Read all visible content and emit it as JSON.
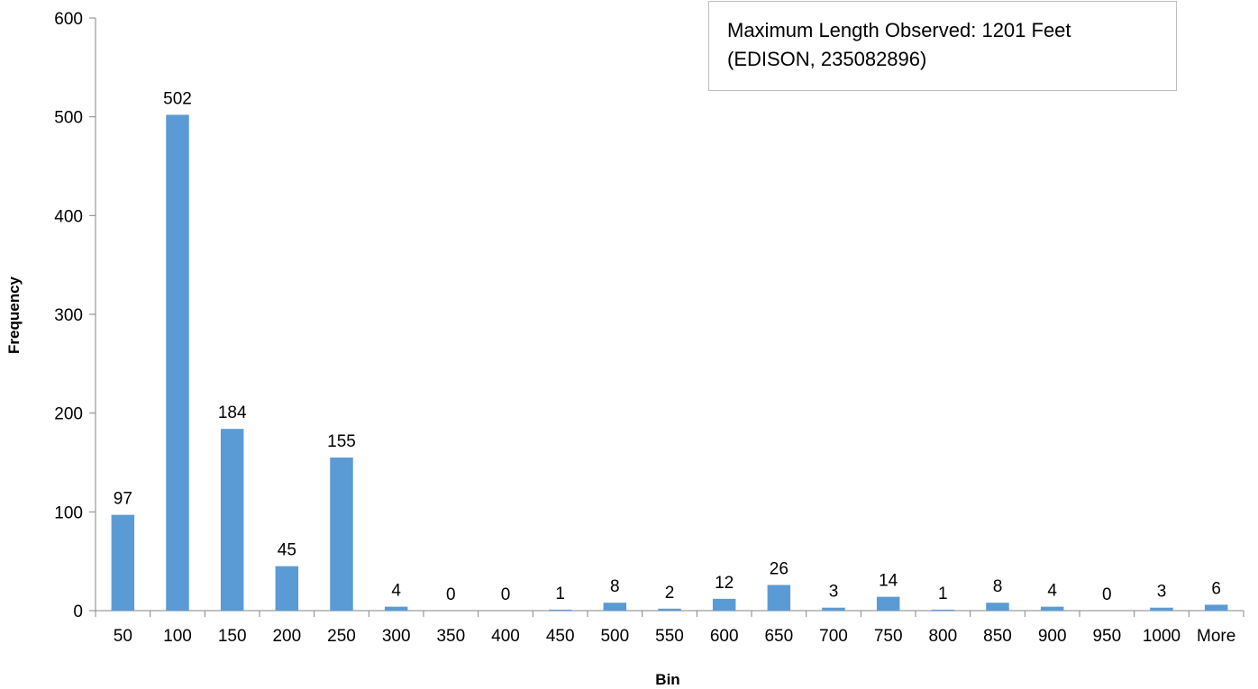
{
  "chart_data": {
    "type": "bar",
    "categories": [
      "50",
      "100",
      "150",
      "200",
      "250",
      "300",
      "350",
      "400",
      "450",
      "500",
      "550",
      "600",
      "650",
      "700",
      "750",
      "800",
      "850",
      "900",
      "950",
      "1000",
      "More"
    ],
    "series": [
      {
        "values": [
          97,
          502,
          184,
          45,
          155,
          4,
          0,
          0,
          1,
          8,
          2,
          12,
          26,
          3,
          14,
          1,
          8,
          4,
          0,
          3,
          6
        ]
      }
    ],
    "xlabel": "Bin",
    "ylabel": "Frequency",
    "ylim": [
      0,
      600
    ],
    "yticks": [
      0,
      100,
      200,
      300,
      400,
      500,
      600
    ],
    "grid": false,
    "bar_color": "#5b9bd5",
    "data_labels": true,
    "annotation": {
      "line1": "Maximum Length Observed: 1201 Feet",
      "line2": "(EDISON, 235082896)"
    }
  }
}
